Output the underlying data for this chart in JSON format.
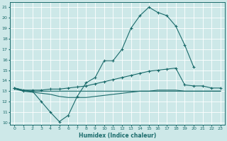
{
  "xlabel": "Humidex (Indice chaleur)",
  "xlim": [
    -0.5,
    23.5
  ],
  "ylim": [
    9.8,
    21.5
  ],
  "yticks": [
    10,
    11,
    12,
    13,
    14,
    15,
    16,
    17,
    18,
    19,
    20,
    21
  ],
  "xticks": [
    0,
    1,
    2,
    3,
    4,
    5,
    6,
    7,
    8,
    9,
    10,
    11,
    12,
    13,
    14,
    15,
    16,
    17,
    18,
    19,
    20,
    21,
    22,
    23
  ],
  "background_color": "#cde8e8",
  "grid_color": "#b0d8d8",
  "line_color": "#1a6b6b",
  "lines": [
    {
      "x": [
        0,
        1,
        2,
        3,
        4,
        5,
        6,
        7,
        8,
        9,
        10,
        11,
        12,
        13,
        14,
        15,
        16,
        17,
        18,
        19,
        20
      ],
      "y": [
        13.3,
        13.0,
        13.0,
        12.0,
        11.0,
        10.1,
        10.7,
        12.5,
        13.8,
        14.3,
        15.9,
        15.9,
        17.0,
        19.0,
        20.2,
        21.0,
        20.5,
        20.2,
        19.2,
        17.4,
        15.3
      ],
      "marker": "+",
      "markersize": 3.5,
      "linewidth": 0.8
    },
    {
      "x": [
        0,
        1,
        2,
        3,
        4,
        5,
        6,
        7,
        8,
        9,
        10,
        11,
        12,
        13,
        14,
        15,
        16,
        17,
        18,
        19,
        20,
        21,
        22,
        23
      ],
      "y": [
        13.3,
        13.1,
        13.1,
        13.1,
        13.2,
        13.2,
        13.3,
        13.4,
        13.5,
        13.7,
        13.9,
        14.1,
        14.3,
        14.5,
        14.7,
        14.9,
        15.0,
        15.1,
        15.2,
        13.6,
        13.5,
        13.5,
        13.3,
        13.3
      ],
      "marker": "+",
      "markersize": 3.5,
      "linewidth": 0.8
    },
    {
      "x": [
        0,
        1,
        2,
        3,
        4,
        5,
        6,
        7,
        8,
        9,
        10,
        11,
        12,
        13,
        14,
        15,
        16,
        17,
        18,
        19,
        20,
        21,
        22,
        23
      ],
      "y": [
        13.2,
        13.0,
        12.9,
        12.8,
        12.7,
        12.5,
        12.4,
        12.4,
        12.4,
        12.5,
        12.6,
        12.7,
        12.8,
        12.9,
        13.0,
        13.0,
        13.1,
        13.1,
        13.1,
        13.0,
        13.0,
        13.0,
        13.0,
        13.0
      ],
      "marker": null,
      "markersize": 0,
      "linewidth": 0.8
    },
    {
      "x": [
        0,
        1,
        2,
        3,
        4,
        5,
        6,
        7,
        8,
        9,
        10,
        11,
        12,
        13,
        14,
        15,
        16,
        17,
        18,
        19,
        20,
        21,
        22,
        23
      ],
      "y": [
        13.3,
        13.1,
        13.0,
        13.0,
        13.0,
        13.0,
        13.0,
        13.0,
        13.0,
        13.0,
        13.0,
        13.0,
        13.0,
        13.0,
        13.0,
        13.0,
        13.0,
        13.0,
        13.0,
        13.0,
        13.0,
        13.0,
        13.0,
        13.0
      ],
      "marker": null,
      "markersize": 0,
      "linewidth": 0.8
    }
  ]
}
